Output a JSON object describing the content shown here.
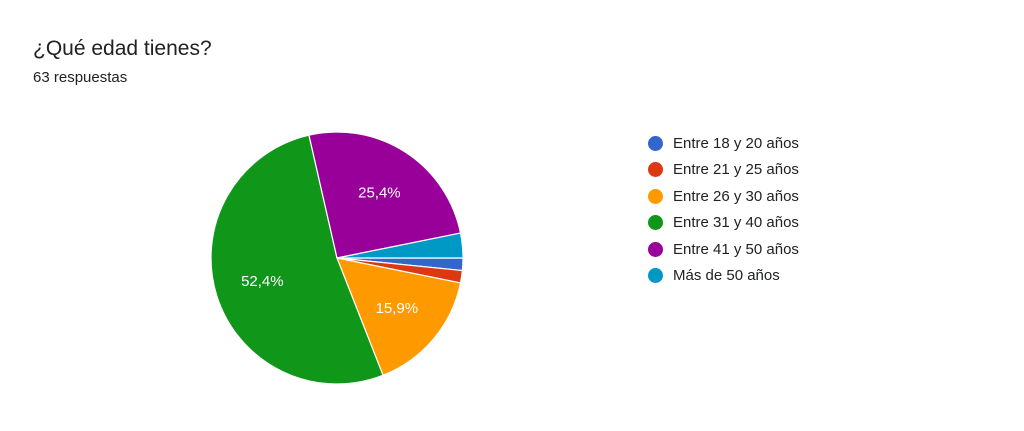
{
  "header": {
    "title": "¿Qué edad tienes?",
    "subtitle": "63 respuestas"
  },
  "chart_data": {
    "type": "pie",
    "title": "¿Qué edad tienes?",
    "subtitle": "63 respuestas",
    "legend_position": "right",
    "categories": [
      "Entre 18 y 20 años",
      "Entre 21 y 25 años",
      "Entre 26 y 30 años",
      "Entre 31 y 40 años",
      "Entre 41 y 50 años",
      "Más de 50 años"
    ],
    "values": [
      1,
      1,
      10,
      33,
      16,
      2
    ],
    "percent_labels": [
      "",
      "",
      "15,9%",
      "52,4%",
      "25,4%",
      ""
    ],
    "colors": [
      "#3366cc",
      "#dc3912",
      "#ff9900",
      "#109618",
      "#990099",
      "#0099c6"
    ]
  }
}
